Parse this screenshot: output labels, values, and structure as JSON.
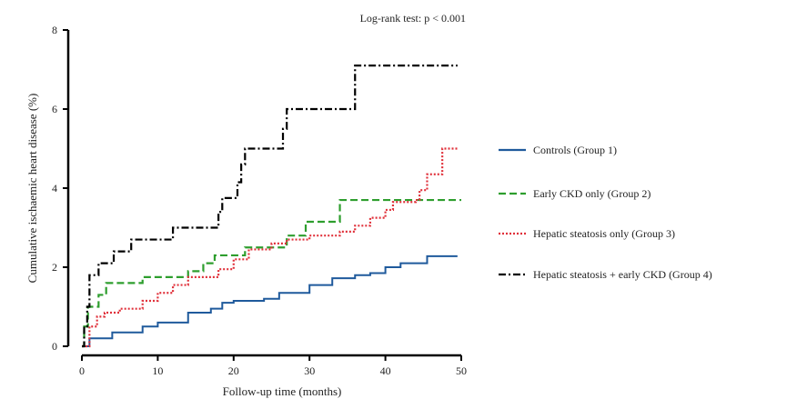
{
  "chart_data": {
    "type": "line",
    "step": true,
    "annotation": "Log-rank test: p < 0.001",
    "xlabel": "Follow-up time (months)",
    "ylabel": "Cumulative ischaemic heart disease (%)",
    "xlim": [
      0,
      50
    ],
    "ylim": [
      0,
      8
    ],
    "xticks": [
      0,
      10,
      20,
      30,
      40,
      50
    ],
    "yticks": [
      0,
      2,
      4,
      6,
      8
    ],
    "grid": false,
    "legend_position": "right",
    "series": [
      {
        "name": "Controls (Group 1)",
        "color": "#1f5a9c",
        "dash": "solid",
        "points": [
          [
            0,
            0
          ],
          [
            1,
            0.2
          ],
          [
            4,
            0.35
          ],
          [
            8,
            0.5
          ],
          [
            10,
            0.6
          ],
          [
            14,
            0.85
          ],
          [
            17,
            0.95
          ],
          [
            18.5,
            1.1
          ],
          [
            20,
            1.15
          ],
          [
            24,
            1.2
          ],
          [
            26,
            1.35
          ],
          [
            30,
            1.55
          ],
          [
            33,
            1.72
          ],
          [
            36,
            1.8
          ],
          [
            38,
            1.85
          ],
          [
            40,
            2.0
          ],
          [
            42,
            2.1
          ],
          [
            45.5,
            2.28
          ],
          [
            49.5,
            2.28
          ]
        ]
      },
      {
        "name": "Early CKD only (Group 2)",
        "color": "#2e9e2e",
        "dash": "dashed",
        "points": [
          [
            0,
            0
          ],
          [
            0.3,
            0.5
          ],
          [
            0.8,
            1.0
          ],
          [
            2.2,
            1.3
          ],
          [
            3.2,
            1.6
          ],
          [
            8,
            1.75
          ],
          [
            14,
            1.9
          ],
          [
            16,
            2.1
          ],
          [
            17.5,
            2.3
          ],
          [
            21.5,
            2.5
          ],
          [
            27,
            2.8
          ],
          [
            29.5,
            3.15
          ],
          [
            34,
            3.7
          ],
          [
            50,
            3.7
          ]
        ]
      },
      {
        "name": "Hepatic steatosis only (Group 3)",
        "color": "#e0303a",
        "dash": "dotted",
        "points": [
          [
            0,
            0
          ],
          [
            1,
            0.5
          ],
          [
            2,
            0.75
          ],
          [
            3,
            0.85
          ],
          [
            5,
            0.95
          ],
          [
            8,
            1.15
          ],
          [
            10,
            1.35
          ],
          [
            12,
            1.55
          ],
          [
            14,
            1.75
          ],
          [
            18,
            1.95
          ],
          [
            20,
            2.2
          ],
          [
            22,
            2.45
          ],
          [
            25,
            2.6
          ],
          [
            27,
            2.7
          ],
          [
            30,
            2.8
          ],
          [
            34,
            2.9
          ],
          [
            36,
            3.05
          ],
          [
            38,
            3.25
          ],
          [
            40,
            3.45
          ],
          [
            41,
            3.65
          ],
          [
            44,
            3.7
          ],
          [
            44.5,
            3.95
          ],
          [
            45.5,
            4.35
          ],
          [
            47.5,
            5.0
          ],
          [
            49.5,
            5.0
          ]
        ]
      },
      {
        "name": "Hepatic steatosis + early CKD (Group 4)",
        "color": "#000000",
        "dash": "dashdot",
        "points": [
          [
            0,
            0
          ],
          [
            0.3,
            0.5
          ],
          [
            0.7,
            1.0
          ],
          [
            1,
            1.8
          ],
          [
            2.2,
            2.1
          ],
          [
            4.2,
            2.4
          ],
          [
            6.5,
            2.7
          ],
          [
            12,
            3.0
          ],
          [
            18,
            3.4
          ],
          [
            18.5,
            3.75
          ],
          [
            20.5,
            4.15
          ],
          [
            21,
            4.6
          ],
          [
            21.5,
            5.0
          ],
          [
            26.5,
            5.5
          ],
          [
            27,
            6.0
          ],
          [
            36,
            7.1
          ],
          [
            49.5,
            7.1
          ]
        ]
      }
    ]
  }
}
